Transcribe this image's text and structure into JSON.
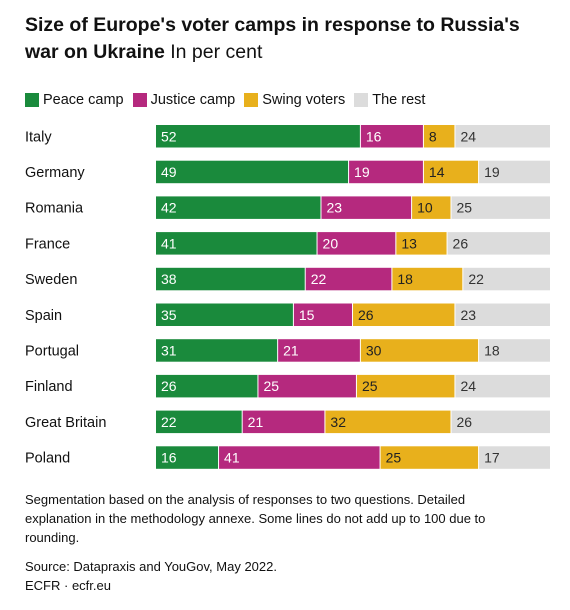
{
  "title_bold": "Size of Europe's voter camps in response to Russia's war on Ukraine",
  "title_unit": "In per cent",
  "legend": [
    {
      "label": "Peace camp",
      "color": "#1a8a3c"
    },
    {
      "label": "Justice camp",
      "color": "#b5297e"
    },
    {
      "label": "Swing voters",
      "color": "#e8b01c"
    },
    {
      "label": "The rest",
      "color": "#dcdcdc"
    }
  ],
  "chart_data": {
    "type": "bar",
    "orientation": "horizontal",
    "stacked": true,
    "categories": [
      "Italy",
      "Germany",
      "Romania",
      "France",
      "Sweden",
      "Spain",
      "Portugal",
      "Finland",
      "Great Britain",
      "Poland"
    ],
    "series": [
      {
        "name": "Peace camp",
        "color": "#1a8a3c",
        "values": [
          52,
          49,
          42,
          41,
          38,
          35,
          31,
          26,
          22,
          16
        ]
      },
      {
        "name": "Justice camp",
        "color": "#b5297e",
        "values": [
          16,
          19,
          23,
          20,
          22,
          15,
          21,
          25,
          21,
          41
        ]
      },
      {
        "name": "Swing voters",
        "color": "#e8b01c",
        "values": [
          8,
          14,
          10,
          13,
          18,
          26,
          30,
          25,
          32,
          25
        ]
      },
      {
        "name": "The rest",
        "color": "#dcdcdc",
        "values": [
          24,
          19,
          25,
          26,
          22,
          23,
          18,
          24,
          26,
          17
        ]
      }
    ],
    "xlim": [
      0,
      100
    ],
    "grid": false,
    "legend_position": "top"
  },
  "footnote": "Segmentation based on the analysis of responses to two questions. Detailed explanation in the methodology annexe. Some lines do not add up to 100 due to rounding.",
  "source": "Source: Datapraxis and YouGov, May 2022.",
  "credit": "ECFR · ecfr.eu"
}
